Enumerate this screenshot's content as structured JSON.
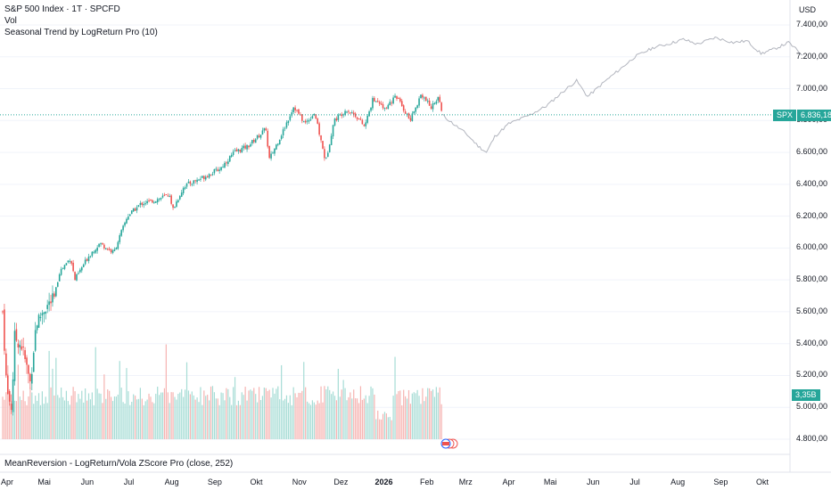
{
  "legend": {
    "title": "S&P 500 Index · 1T · SPCFD",
    "vol": "Vol",
    "indicator": "Seasonal Trend by LogReturn Pro (10)"
  },
  "bottom_indicator": "MeanReversion - LogReturn/Vola ZScore Pro (close, 252)",
  "currency": "USD",
  "last_price": {
    "symbol": "SPX",
    "value": "6.836,18",
    "value_num": 6836.18,
    "color": "#26a69a"
  },
  "volume_badge": "3,35B",
  "colors": {
    "up": "#26a69a",
    "down": "#ef5350",
    "seasonal": "#b2b5be",
    "grid": "#f0f3fa"
  },
  "chart_data": {
    "type": "candlestick",
    "ylim": [
      4700,
      7450
    ],
    "y_ticks": [
      {
        "value": 7400,
        "label": "7.400,00"
      },
      {
        "value": 7200,
        "label": "7.200,00"
      },
      {
        "value": 7000,
        "label": "7.000,00"
      },
      {
        "value": 6800,
        "label": "6.800,00"
      },
      {
        "value": 6600,
        "label": "6.600,00"
      },
      {
        "value": 6400,
        "label": "6.400,00"
      },
      {
        "value": 6200,
        "label": "6.200,00"
      },
      {
        "value": 6000,
        "label": "6.000,00"
      },
      {
        "value": 5800,
        "label": "5.800,00"
      },
      {
        "value": 5600,
        "label": "5.600,00"
      },
      {
        "value": 5400,
        "label": "5.400,00"
      },
      {
        "value": 5200,
        "label": "5.200,00"
      },
      {
        "value": 5000,
        "label": "5.000,00"
      },
      {
        "value": 4800,
        "label": "4.800,00"
      }
    ],
    "x_labels": [
      "Apr",
      "Mai",
      "Jun",
      "Jul",
      "Aug",
      "Sep",
      "Okt",
      "Nov",
      "Dez",
      "2026",
      "Feb",
      "Mrz",
      "Apr",
      "Mai",
      "Jun",
      "Jul",
      "Aug",
      "Sep",
      "Okt"
    ],
    "price_path": [
      [
        "2025-04-01",
        5600
      ],
      [
        "2025-04-04",
        5100
      ],
      [
        "2025-04-08",
        4980
      ],
      [
        "2025-04-09",
        5450
      ],
      [
        "2025-04-15",
        5380
      ],
      [
        "2025-04-21",
        5150
      ],
      [
        "2025-04-25",
        5520
      ],
      [
        "2025-05-01",
        5620
      ],
      [
        "2025-05-08",
        5680
      ],
      [
        "2025-05-12",
        5850
      ],
      [
        "2025-05-20",
        5940
      ],
      [
        "2025-05-23",
        5800
      ],
      [
        "2025-06-02",
        5950
      ],
      [
        "2025-06-10",
        6030
      ],
      [
        "2025-06-20",
        5970
      ],
      [
        "2025-06-30",
        6200
      ],
      [
        "2025-07-10",
        6280
      ],
      [
        "2025-07-20",
        6300
      ],
      [
        "2025-07-31",
        6340
      ],
      [
        "2025-08-01",
        6230
      ],
      [
        "2025-08-10",
        6390
      ],
      [
        "2025-08-25",
        6450
      ],
      [
        "2025-09-05",
        6500
      ],
      [
        "2025-09-15",
        6600
      ],
      [
        "2025-09-25",
        6640
      ],
      [
        "2025-10-08",
        6750
      ],
      [
        "2025-10-10",
        6550
      ],
      [
        "2025-10-20",
        6730
      ],
      [
        "2025-10-28",
        6890
      ],
      [
        "2025-11-05",
        6780
      ],
      [
        "2025-11-12",
        6850
      ],
      [
        "2025-11-20",
        6540
      ],
      [
        "2025-11-26",
        6800
      ],
      [
        "2025-12-05",
        6870
      ],
      [
        "2025-12-12",
        6830
      ],
      [
        "2025-12-18",
        6760
      ],
      [
        "2025-12-24",
        6930
      ],
      [
        "2026-01-02",
        6880
      ],
      [
        "2026-01-10",
        6950
      ],
      [
        "2026-01-20",
        6800
      ],
      [
        "2026-01-28",
        6970
      ],
      [
        "2026-02-04",
        6880
      ],
      [
        "2026-02-09",
        6950
      ],
      [
        "2026-02-12",
        6836
      ]
    ],
    "seasonal_path": [
      [
        "2026-02-12",
        6836
      ],
      [
        "2026-02-20",
        6780
      ],
      [
        "2026-03-01",
        6720
      ],
      [
        "2026-03-10",
        6640
      ],
      [
        "2026-03-16",
        6600
      ],
      [
        "2026-03-22",
        6700
      ],
      [
        "2026-04-01",
        6780
      ],
      [
        "2026-04-15",
        6830
      ],
      [
        "2026-04-28",
        6890
      ],
      [
        "2026-05-10",
        6980
      ],
      [
        "2026-05-20",
        7050
      ],
      [
        "2026-05-28",
        6950
      ],
      [
        "2026-06-10",
        7050
      ],
      [
        "2026-06-20",
        7120
      ],
      [
        "2026-07-01",
        7200
      ],
      [
        "2026-07-15",
        7260
      ],
      [
        "2026-07-25",
        7280
      ],
      [
        "2026-08-05",
        7310
      ],
      [
        "2026-08-15",
        7280
      ],
      [
        "2026-08-28",
        7320
      ],
      [
        "2026-09-10",
        7290
      ],
      [
        "2026-09-20",
        7300
      ],
      [
        "2026-09-30",
        7220
      ],
      [
        "2026-10-10",
        7250
      ],
      [
        "2026-10-20",
        7290
      ],
      [
        "2026-10-30",
        7210
      ]
    ]
  }
}
